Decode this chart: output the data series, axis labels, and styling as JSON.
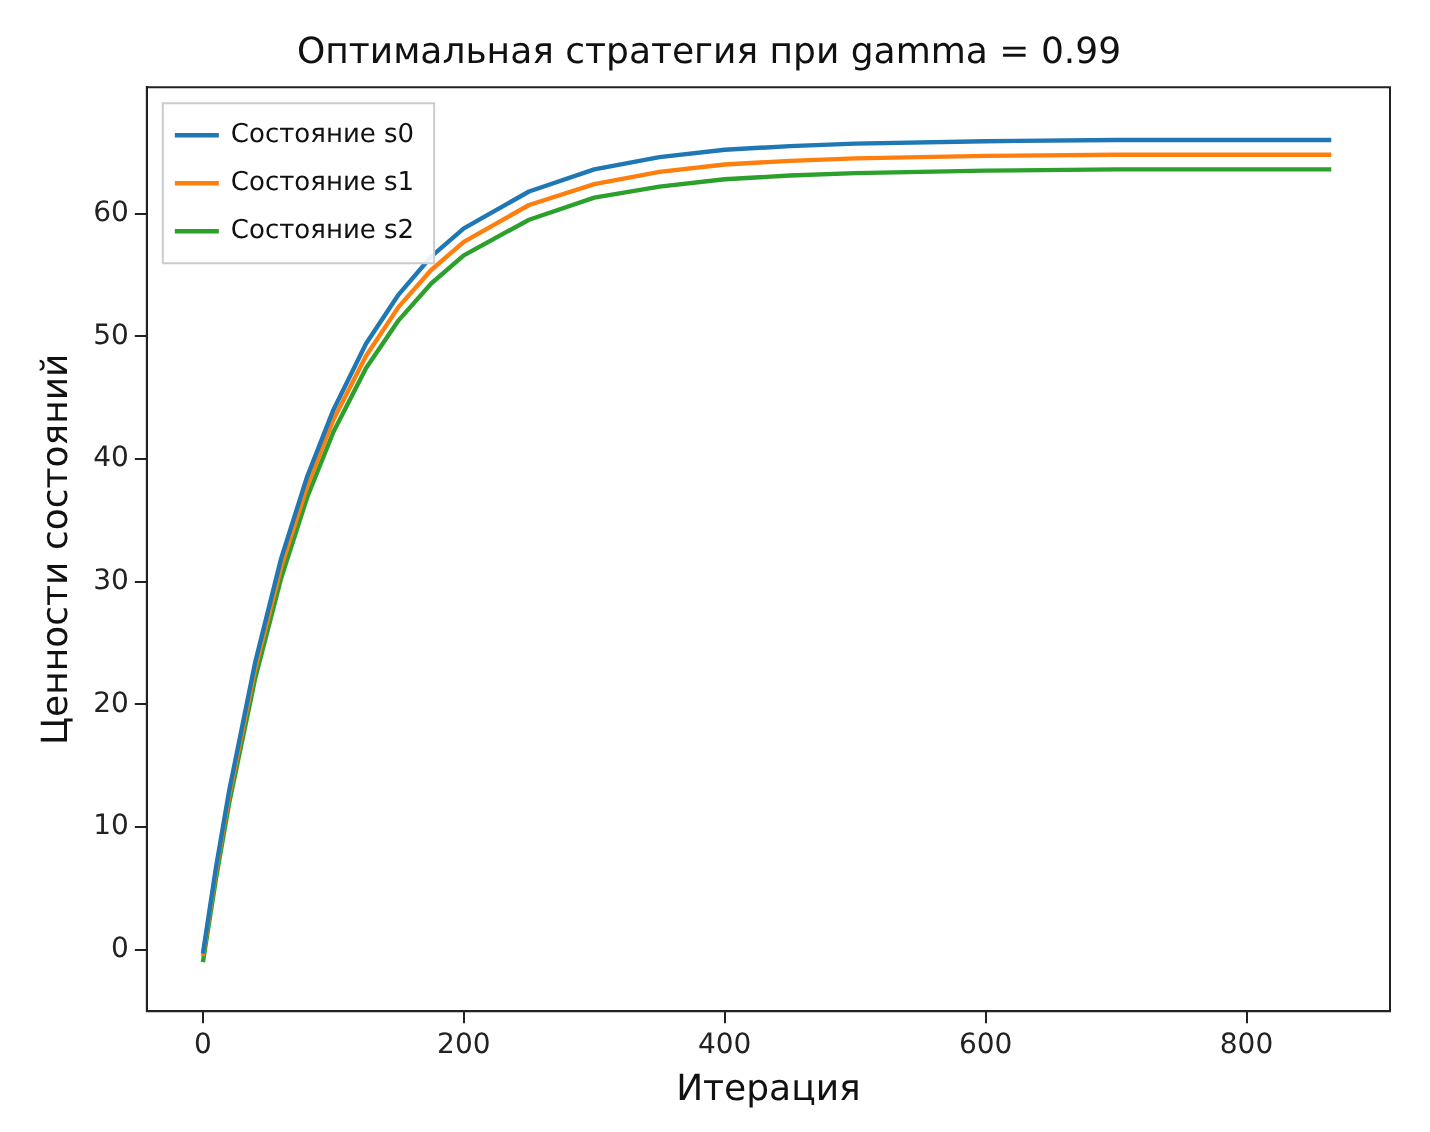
{
  "chart_data": {
    "type": "line",
    "title": "Оптимальная стратегия при gamma = 0.99",
    "xlabel": "Итерация",
    "ylabel": "Ценности состояний",
    "x": [
      0,
      10,
      20,
      40,
      60,
      80,
      100,
      125,
      150,
      175,
      200,
      250,
      300,
      350,
      400,
      450,
      500,
      600,
      700,
      865
    ],
    "xlim": [
      -43,
      910
    ],
    "xticks": [
      0,
      200,
      400,
      600,
      800
    ],
    "ylim": [
      -5,
      70.3
    ],
    "yticks": [
      0,
      10,
      20,
      30,
      40,
      50,
      60
    ],
    "grid": false,
    "legend": "top left",
    "marker": "none",
    "line_style": "solid",
    "series": [
      {
        "name": "Состояние s0",
        "color": "#1f77b4",
        "values": [
          -0.3,
          6.7,
          12.9,
          23.4,
          31.9,
          38.6,
          44.0,
          49.4,
          53.4,
          56.5,
          58.8,
          61.8,
          63.6,
          64.6,
          65.2,
          65.5,
          65.7,
          65.9,
          66.0,
          66.0
        ]
      },
      {
        "name": "Состояние s1",
        "color": "#ff7f0e",
        "values": [
          -0.5,
          6.4,
          12.5,
          22.9,
          31.2,
          37.8,
          43.2,
          48.4,
          52.4,
          55.4,
          57.7,
          60.7,
          62.4,
          63.4,
          64.0,
          64.3,
          64.5,
          64.7,
          64.8,
          64.8
        ]
      },
      {
        "name": "Состояние s2",
        "color": "#2ca02c",
        "values": [
          -1.0,
          5.8,
          11.9,
          22.1,
          30.3,
          36.9,
          42.2,
          47.4,
          51.3,
          54.3,
          56.6,
          59.5,
          61.3,
          62.2,
          62.8,
          63.1,
          63.3,
          63.5,
          63.6,
          63.6
        ]
      }
    ]
  }
}
